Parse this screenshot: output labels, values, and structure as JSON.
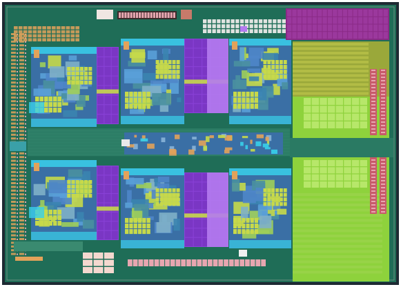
{
  "image": {
    "subject": "processor-die-photograph",
    "background_color": "#ffffff",
    "die": {
      "base_color": "#1f6d57",
      "border_color": "#1e2a33",
      "frame_color": "#6b8f80"
    },
    "palette": {
      "core_logic": "#4f86c9",
      "core_cyan": "#39d0ea",
      "cache_yellow": "#c7d94a",
      "cache_purple": "#8a42d8",
      "cache_purple_light": "#b47bf0",
      "l3_green": "#8ed23c",
      "l3_olive": "#9aa83a",
      "l3_magenta": "#8a2a86",
      "pad_orange": "#e2a25a",
      "pad_pink": "#e7a6b0",
      "uncore_blue": "#3f7fb8",
      "trace_white": "#f0f0f0"
    },
    "regions": {
      "cores": 6,
      "l2_cache_blocks": 6,
      "l3_cache_regions": 1,
      "io_pad_columns": 2
    }
  }
}
